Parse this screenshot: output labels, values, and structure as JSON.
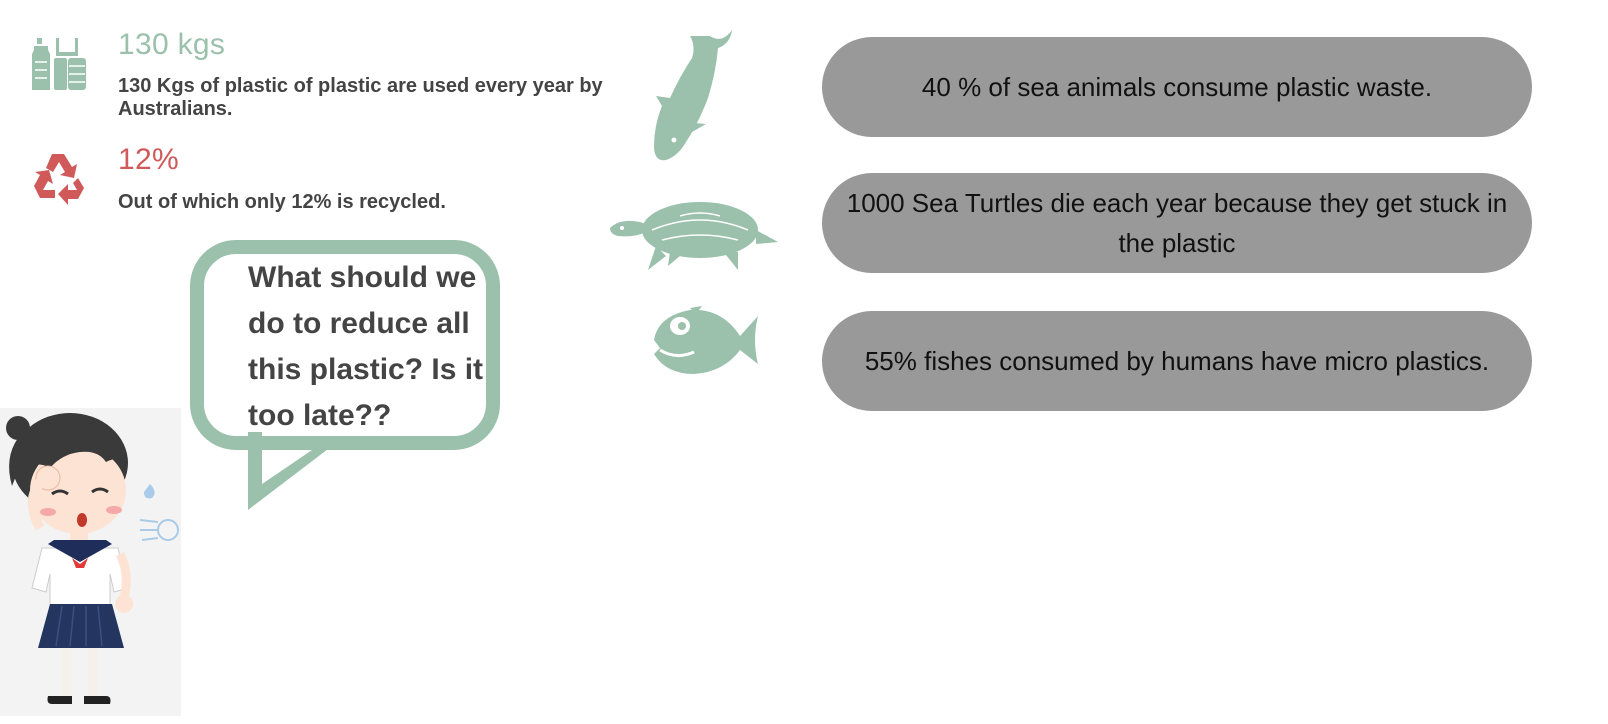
{
  "stats": [
    {
      "headline": "130 kgs",
      "description": "130 Kgs of plastic of plastic are used every year by Australians.",
      "color": "#9bc1ac",
      "icon": "plastic-bottles-icon"
    },
    {
      "headline": "12%",
      "description": "Out of which only 12% is recycled.",
      "color": "#d05a5a",
      "icon": "recycle-icon"
    }
  ],
  "speech_bubble": {
    "text": "What should we do to reduce all this plastic? Is it too late??"
  },
  "facts": [
    {
      "icon": "dolphin-icon",
      "text": "40 % of sea animals consume plastic waste."
    },
    {
      "icon": "turtle-icon",
      "text": "1000 Sea Turtles die each year because they get stuck in the plastic"
    },
    {
      "icon": "fish-icon",
      "text": "55% fishes consumed by humans have micro plastics."
    }
  ],
  "colors": {
    "accent_green": "#9bc1ac",
    "accent_red": "#d05a5a",
    "pill_gray": "#999999"
  },
  "illustration": {
    "icon": "worried-girl-illustration"
  }
}
